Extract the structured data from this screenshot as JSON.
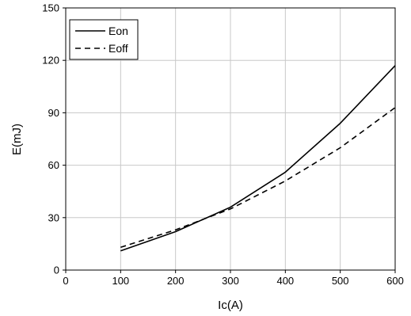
{
  "chart_data": {
    "type": "line",
    "title": "",
    "xlabel": "Ic(A)",
    "ylabel": "E(mJ)",
    "xlim": [
      0,
      600
    ],
    "ylim": [
      0,
      150
    ],
    "xticks": [
      0,
      100,
      200,
      300,
      400,
      500,
      600
    ],
    "yticks": [
      0,
      30,
      60,
      90,
      120,
      150
    ],
    "grid": true,
    "legend_position": "top-left",
    "x": [
      100,
      200,
      300,
      400,
      500,
      600
    ],
    "series": [
      {
        "name": "Eon",
        "style": "solid",
        "color": "#000000",
        "values": [
          11,
          22,
          36,
          56,
          84,
          117
        ]
      },
      {
        "name": "Eoff",
        "style": "dashed",
        "color": "#000000",
        "values": [
          13,
          23,
          35,
          51,
          70,
          93
        ]
      }
    ]
  }
}
